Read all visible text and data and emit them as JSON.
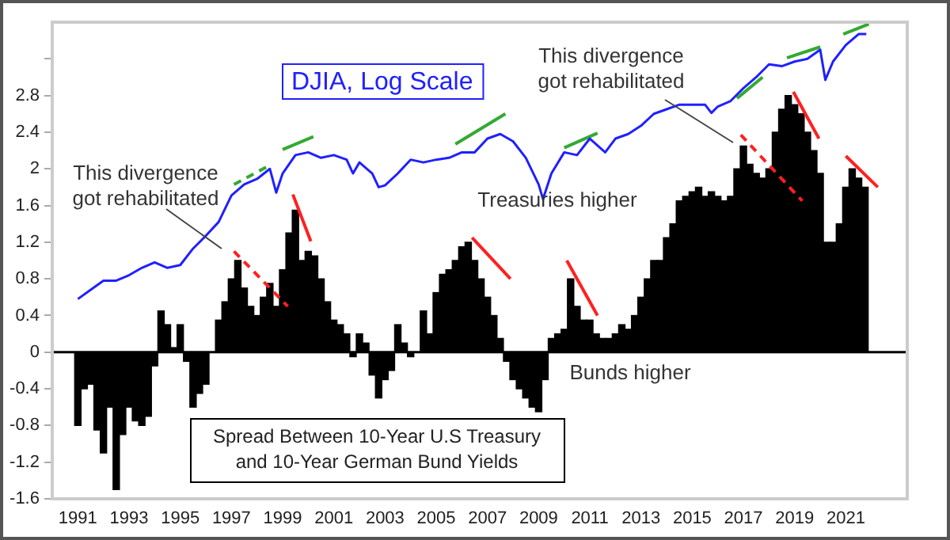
{
  "chart_data": {
    "type": "bar",
    "xlim": [
      1990,
      2023.4
    ],
    "xticks": [
      1991,
      1993,
      1995,
      1997,
      1999,
      2001,
      2003,
      2005,
      2007,
      2009,
      2011,
      2013,
      2015,
      2017,
      2019,
      2021
    ],
    "ylim": [
      -1.6,
      3.6
    ],
    "yticks": [
      -1.6,
      -1.2,
      -0.8,
      -0.4,
      0,
      0.4,
      0.8,
      1.2,
      1.6,
      2,
      2.4,
      2.8,
      {
        "value": 3.2,
        "label": null
      }
    ],
    "grid": false,
    "legend": false,
    "marker": "none",
    "ref_lines": [
      {
        "axis": "y",
        "value": 0,
        "color": "#000000"
      }
    ],
    "annotations": [
      "This divergence\ngot rehabilitated",
      "This divergence\ngot rehabilitated",
      "Treasuries higher",
      "Bunds higher"
    ],
    "series": [
      {
        "name": "Spread Between 10-Year U.S Treasury and 10-Year German Bund Yields",
        "color": "#000000",
        "x": [
          1991,
          1991.25,
          1991.5,
          1991.75,
          1992,
          1992.25,
          1992.5,
          1992.75,
          1993,
          1993.25,
          1993.5,
          1993.75,
          1994,
          1994.25,
          1994.5,
          1994.75,
          1995,
          1995.25,
          1995.5,
          1995.75,
          1996,
          1996.25,
          1996.5,
          1996.75,
          1997,
          1997.25,
          1997.5,
          1997.75,
          1998,
          1998.25,
          1998.5,
          1998.75,
          1999,
          1999.25,
          1999.5,
          1999.75,
          2000,
          2000.25,
          2000.5,
          2000.75,
          2001,
          2001.25,
          2001.5,
          2001.75,
          2002,
          2002.25,
          2002.5,
          2002.75,
          2003,
          2003.25,
          2003.5,
          2003.75,
          2004,
          2004.25,
          2004.5,
          2004.75,
          2005,
          2005.25,
          2005.5,
          2005.75,
          2006,
          2006.25,
          2006.5,
          2006.75,
          2007,
          2007.25,
          2007.5,
          2007.75,
          2008,
          2008.25,
          2008.5,
          2008.75,
          2009,
          2009.25,
          2009.5,
          2009.75,
          2010,
          2010.25,
          2010.5,
          2010.75,
          2011,
          2011.25,
          2011.5,
          2011.75,
          2012,
          2012.25,
          2012.5,
          2012.75,
          2013,
          2013.25,
          2013.5,
          2013.75,
          2014,
          2014.25,
          2014.5,
          2014.75,
          2015,
          2015.25,
          2015.5,
          2015.75,
          2016,
          2016.25,
          2016.5,
          2016.75,
          2017,
          2017.25,
          2017.5,
          2017.75,
          2018,
          2018.25,
          2018.5,
          2018.75,
          2019,
          2019.25,
          2019.5,
          2019.75,
          2020,
          2020.25,
          2020.5,
          2020.75,
          2021,
          2021.25,
          2021.5,
          2021.75
        ],
        "values": [
          -0.8,
          -0.4,
          -0.35,
          -0.85,
          -1.1,
          -0.6,
          -1.5,
          -0.9,
          -0.6,
          -0.75,
          -0.8,
          -0.7,
          -0.15,
          0.45,
          0.3,
          0.05,
          0.3,
          -0.1,
          -0.6,
          -0.45,
          -0.35,
          0,
          0.35,
          0.55,
          0.8,
          1,
          0.7,
          0.5,
          0.4,
          0.6,
          0.75,
          0.5,
          0.9,
          1.3,
          1.55,
          1,
          1.1,
          1.05,
          0.8,
          0.55,
          0.35,
          0.3,
          0.2,
          -0.05,
          0.2,
          0.1,
          -0.25,
          -0.5,
          -0.3,
          -0.2,
          0.3,
          0.1,
          -0.05,
          0,
          0.45,
          0.2,
          0.65,
          0.85,
          0.9,
          1,
          1.15,
          1.2,
          1,
          0.8,
          0.6,
          0.4,
          0.15,
          -0.1,
          -0.3,
          -0.4,
          -0.5,
          -0.6,
          -0.65,
          -0.3,
          0.15,
          0.2,
          0.25,
          0.8,
          0.5,
          0.35,
          0.35,
          0.2,
          0.15,
          0.15,
          0.2,
          0.3,
          0.25,
          0.4,
          0.6,
          0.8,
          1,
          1,
          1.25,
          1.4,
          1.65,
          1.7,
          1.75,
          1.8,
          1.7,
          1.75,
          1.7,
          1.65,
          1.7,
          2,
          2.25,
          2.05,
          1.95,
          1.9,
          2,
          2.4,
          2.65,
          2.8,
          2.7,
          2.6,
          2.4,
          2.2,
          1.95,
          1.2,
          1.2,
          1.4,
          1.8,
          2,
          1.9,
          1.8
        ]
      },
      {
        "name": "DJIA, Log Scale",
        "type": "line",
        "color": "#2020ff",
        "line_style": "solid",
        "x": [
          1991,
          1991.5,
          1992,
          1992.5,
          1993,
          1993.5,
          1994,
          1994.5,
          1995,
          1995.5,
          1996,
          1996.5,
          1997,
          1997.5,
          1998,
          1998.5,
          1998.75,
          1999,
          1999.5,
          2000,
          2000.5,
          2001,
          2001.5,
          2001.75,
          2002,
          2002.5,
          2002.75,
          2003,
          2003.5,
          2004,
          2004.5,
          2005,
          2005.5,
          2006,
          2006.5,
          2007,
          2007.5,
          2008,
          2008.5,
          2009,
          2009.17,
          2009.5,
          2010,
          2010.5,
          2011,
          2011.6,
          2012,
          2012.5,
          2013,
          2013.5,
          2014,
          2014.5,
          2015,
          2015.5,
          2015.75,
          2016,
          2016.5,
          2017,
          2017.5,
          2018,
          2018.5,
          2019,
          2019.5,
          2020,
          2020.2,
          2020.5,
          2021,
          2021.5,
          2021.8
        ],
        "values": [
          0.58,
          0.68,
          0.78,
          0.78,
          0.84,
          0.92,
          0.98,
          0.92,
          0.95,
          1.13,
          1.27,
          1.42,
          1.71,
          1.83,
          1.89,
          2,
          1.74,
          1.95,
          2.15,
          2.18,
          2.12,
          2.15,
          2.1,
          1.95,
          2.07,
          1.95,
          1.8,
          1.82,
          1.95,
          2.1,
          2.07,
          2.1,
          2.12,
          2.18,
          2.18,
          2.33,
          2.38,
          2.3,
          2.12,
          1.83,
          1.67,
          1.95,
          2.18,
          2.15,
          2.33,
          2.18,
          2.33,
          2.38,
          2.47,
          2.6,
          2.65,
          2.7,
          2.7,
          2.7,
          2.61,
          2.68,
          2.74,
          2.88,
          3,
          3.14,
          3.12,
          3.17,
          3.2,
          3.3,
          2.97,
          3.17,
          3.35,
          3.47,
          3.47
        ]
      },
      {
        "type": "line",
        "color": "#33aa33",
        "line_style": "dashed",
        "x": [
          1997.1,
          1998.5
        ],
        "values": [
          1.83,
          2.04
        ]
      },
      {
        "type": "line",
        "color": "#33aa33",
        "line_style": "solid",
        "x": [
          1999,
          2000.2
        ],
        "values": [
          2.21,
          2.35
        ]
      },
      {
        "type": "line",
        "color": "#33aa33",
        "line_style": "solid",
        "x": [
          2005.75,
          2007.7
        ],
        "values": [
          2.27,
          2.6
        ]
      },
      {
        "type": "line",
        "color": "#33aa33",
        "line_style": "solid",
        "x": [
          2010,
          2011.3
        ],
        "values": [
          2.23,
          2.39
        ]
      },
      {
        "type": "line",
        "color": "#33aa33",
        "line_style": "solid",
        "x": [
          2016.75,
          2017.75
        ],
        "values": [
          2.77,
          3
        ]
      },
      {
        "type": "line",
        "color": "#33aa33",
        "line_style": "solid",
        "x": [
          2018.7,
          2020
        ],
        "values": [
          3.21,
          3.33
        ]
      },
      {
        "type": "line",
        "color": "#33aa33",
        "line_style": "solid",
        "x": [
          2020.9,
          2021.9
        ],
        "values": [
          3.47,
          3.58
        ]
      },
      {
        "type": "line",
        "color": "#ff2020",
        "line_style": "dashed",
        "x": [
          1997.1,
          1999.2
        ],
        "values": [
          1.1,
          0.5
        ]
      },
      {
        "type": "line",
        "color": "#ff2020",
        "line_style": "solid",
        "x": [
          1999.4,
          2000.1
        ],
        "values": [
          1.72,
          1.21
        ]
      },
      {
        "type": "line",
        "color": "#ff2020",
        "line_style": "solid",
        "x": [
          2006.4,
          2007.9
        ],
        "values": [
          1.25,
          0.8
        ]
      },
      {
        "type": "line",
        "color": "#ff2020",
        "line_style": "solid",
        "x": [
          2010.1,
          2011.3
        ],
        "values": [
          1,
          0.4
        ]
      },
      {
        "type": "line",
        "color": "#ff2020",
        "line_style": "dashed",
        "x": [
          2016.9,
          2019.3
        ],
        "values": [
          2.37,
          1.65
        ]
      },
      {
        "type": "line",
        "color": "#ff2020",
        "line_style": "solid",
        "x": [
          2018.95,
          2019.95
        ],
        "values": [
          2.84,
          2.33
        ]
      },
      {
        "type": "line",
        "color": "#ff2020",
        "line_style": "solid",
        "x": [
          2021,
          2022.25
        ],
        "values": [
          2.14,
          1.8
        ]
      }
    ]
  }
}
